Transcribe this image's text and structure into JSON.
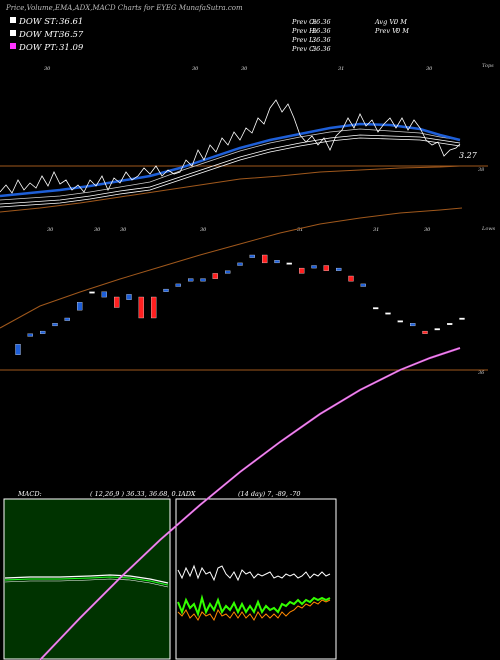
{
  "title": "Price,Volume,EMA,ADX,MACD Charts for EYEG MunafaSutra.com",
  "legend": [
    {
      "label": "DOW ST:",
      "value": "36.61",
      "color": "#ffffff"
    },
    {
      "label": "DOW MT:",
      "value": "36.57",
      "color": "#ffffff"
    },
    {
      "label": "DOW PT:",
      "value": "31.09",
      "color": "#ff33ff"
    }
  ],
  "stats": {
    "prev_o": {
      "label": "Prev O:",
      "value": "36.36"
    },
    "prev_h": {
      "label": "Prev H:",
      "value": "36.36"
    },
    "prev_l": {
      "label": "Prev L:",
      "value": "36.36"
    },
    "prev_c": {
      "label": "Prev C:",
      "value": "36.36"
    },
    "avg_v": {
      "label": "Avg V:",
      "value": "0 M"
    },
    "prev_v": {
      "label": "Prev V:",
      "value": "0 M"
    }
  },
  "top_panel": {
    "right_label": "Tops",
    "dates": [
      "30",
      "30",
      "30",
      "31",
      "30"
    ],
    "value_tag": "3.27",
    "level_label": "38"
  },
  "mid_panel": {
    "right_label": "Lows",
    "dates": [
      "30",
      "30",
      "30",
      "30",
      "31",
      "31",
      "30"
    ],
    "level_label": "36"
  },
  "macd": {
    "label": "MACD:",
    "params": "( 12,26,9 ) 36.33, 36.68, 0.1"
  },
  "adx": {
    "label": "ADX",
    "params": "(14 day) 7, -89, -70"
  },
  "colors": {
    "up": "#1e5fd8",
    "down": "#ff2020",
    "ema_brown": "#a0581c",
    "pink": "#dd55dd",
    "macd_bg": "#003300",
    "macd_green": "#22ff22",
    "adx_green": "#33ff00"
  },
  "chart_data": [
    {
      "type": "line",
      "title": "Price,Volume,EMA,ADX,MACD Charts for EYEG MunafaSutra.com",
      "series": [
        {
          "name": "DOW ST",
          "last": 36.61
        },
        {
          "name": "DOW MT",
          "last": 36.57
        },
        {
          "name": "DOW PT",
          "last": 31.09
        }
      ]
    },
    {
      "type": "candlestick",
      "candles": [
        {
          "d": "up",
          "o": 0.62,
          "c": 0.66
        },
        {
          "d": "up",
          "o": 0.69,
          "c": 0.7
        },
        {
          "d": "up",
          "o": 0.7,
          "c": 0.71
        },
        {
          "d": "up",
          "o": 0.73,
          "c": 0.74
        },
        {
          "d": "up",
          "o": 0.75,
          "c": 0.76
        },
        {
          "d": "up",
          "o": 0.79,
          "c": 0.82
        },
        {
          "d": "flat",
          "o": 0.86,
          "c": 0.86
        },
        {
          "d": "up",
          "o": 0.84,
          "c": 0.86
        },
        {
          "d": "down",
          "o": 0.84,
          "c": 0.8
        },
        {
          "d": "up",
          "o": 0.83,
          "c": 0.85
        },
        {
          "d": "down",
          "o": 0.84,
          "c": 0.76
        },
        {
          "d": "down",
          "o": 0.84,
          "c": 0.76
        },
        {
          "d": "up",
          "o": 0.86,
          "c": 0.87
        },
        {
          "d": "up",
          "o": 0.88,
          "c": 0.89
        },
        {
          "d": "up",
          "o": 0.9,
          "c": 0.91
        },
        {
          "d": "up",
          "o": 0.9,
          "c": 0.91
        },
        {
          "d": "down",
          "o": 0.93,
          "c": 0.91
        },
        {
          "d": "up",
          "o": 0.93,
          "c": 0.94
        },
        {
          "d": "up",
          "o": 0.96,
          "c": 0.97
        },
        {
          "d": "up",
          "o": 0.99,
          "c": 1.0
        },
        {
          "d": "down",
          "o": 1.0,
          "c": 0.97
        },
        {
          "d": "up",
          "o": 0.97,
          "c": 0.98
        },
        {
          "d": "flat",
          "o": 0.97,
          "c": 0.97
        },
        {
          "d": "down",
          "o": 0.95,
          "c": 0.93
        },
        {
          "d": "up",
          "o": 0.95,
          "c": 0.96
        },
        {
          "d": "down",
          "o": 0.96,
          "c": 0.94
        },
        {
          "d": "up",
          "o": 0.94,
          "c": 0.95
        },
        {
          "d": "down",
          "o": 0.92,
          "c": 0.9
        },
        {
          "d": "up",
          "o": 0.88,
          "c": 0.89
        },
        {
          "d": "flat",
          "o": 0.8,
          "c": 0.8
        },
        {
          "d": "flat",
          "o": 0.78,
          "c": 0.78
        },
        {
          "d": "flat",
          "o": 0.75,
          "c": 0.75
        },
        {
          "d": "up",
          "o": 0.73,
          "c": 0.74
        },
        {
          "d": "down",
          "o": 0.71,
          "c": 0.7
        },
        {
          "d": "flat",
          "o": 0.72,
          "c": 0.72
        },
        {
          "d": "flat",
          "o": 0.74,
          "c": 0.74
        },
        {
          "d": "flat",
          "o": 0.76,
          "c": 0.76
        }
      ]
    }
  ]
}
